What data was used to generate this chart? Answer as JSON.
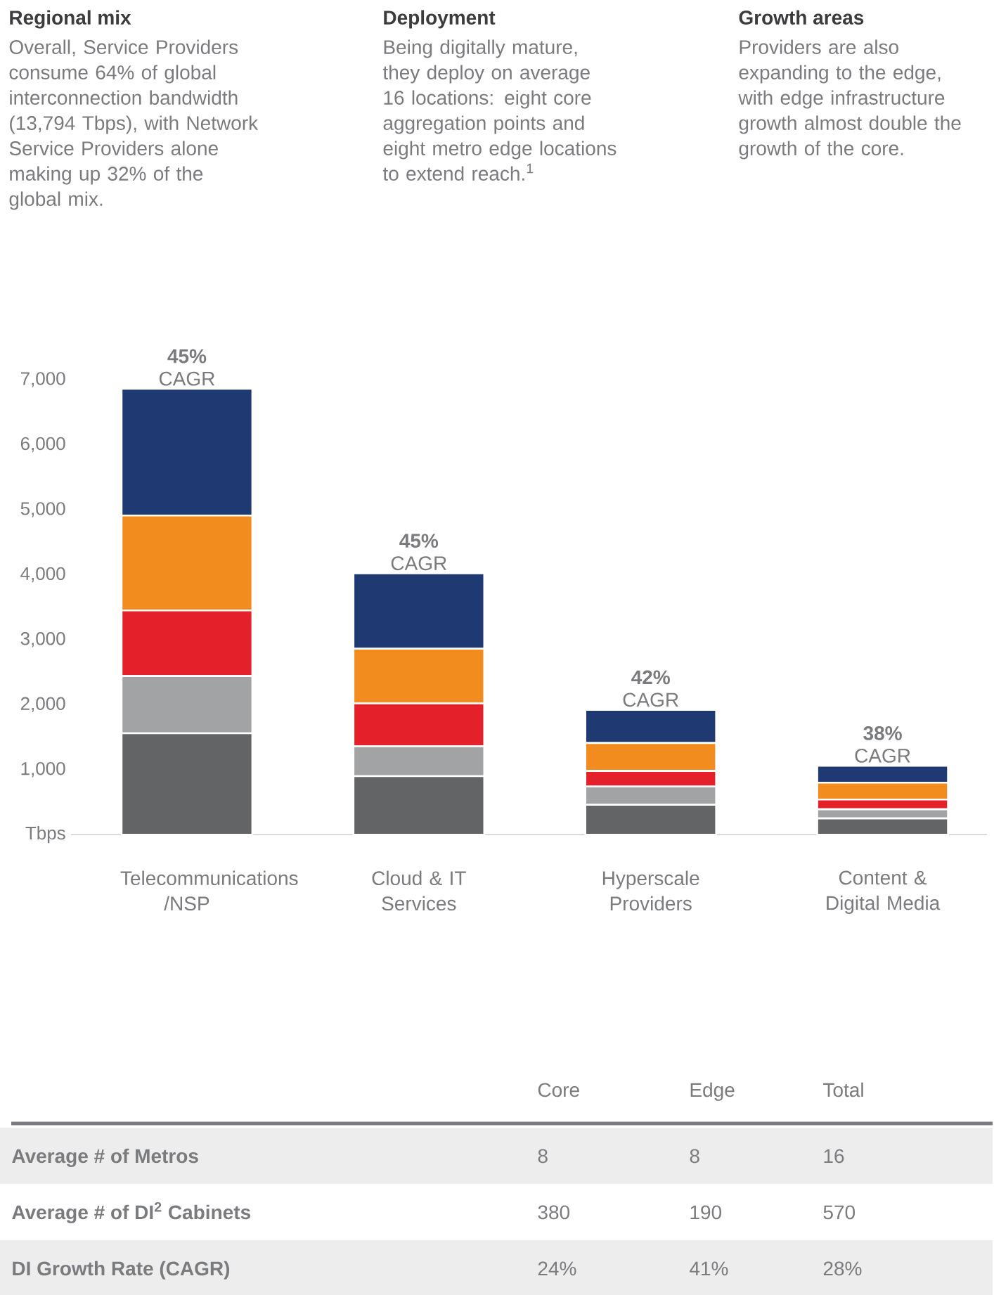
{
  "chart_data": {
    "type": "bar",
    "stacked": true,
    "categories": [
      "Telecommunications /NSP",
      "Cloud & IT Services",
      "Hyperscale Providers",
      "Content & Digital Media"
    ],
    "series": [
      {
        "color": "#636466",
        "values": [
          1560,
          900,
          460,
          250
        ]
      },
      {
        "color": "#a2a3a5",
        "values": [
          880,
          460,
          280,
          140
        ]
      },
      {
        "color": "#e4202a",
        "values": [
          1010,
          660,
          240,
          150
        ]
      },
      {
        "color": "#f28c1f",
        "values": [
          1460,
          840,
          430,
          260
        ]
      },
      {
        "color": "#1f3a72",
        "values": [
          1950,
          1160,
          510,
          260
        ]
      }
    ],
    "ylim": [
      0,
      7000
    ],
    "yticks": [
      {
        "value": 0,
        "label": "Tbps"
      },
      {
        "value": 1000,
        "label": "1,000"
      },
      {
        "value": 2000,
        "label": "2,000"
      },
      {
        "value": 3000,
        "label": "3,000"
      },
      {
        "value": 4000,
        "label": "4,000"
      },
      {
        "value": 5000,
        "label": "5,000"
      },
      {
        "value": 6000,
        "label": "6,000"
      },
      {
        "value": 7000,
        "label": "7,000"
      }
    ],
    "grid": false,
    "annotations": [
      "Regional mix",
      "Overall, Service Providers consume 64% of global interconnection bandwidth (13,794 Tbps), with Network Service Providers alone making up 32% of the global mix.",
      "Deployment",
      "Being digitally mature, they deploy on average 16 locations: eight core aggregation points and eight metro edge locations to extend reach.$^{1}$",
      "Growth areas",
      "Providers are also expanding to the edge, with edge infrastructure growth almost double the growth of the core.",
      {
        "text": "**45%** CAGR",
        "x": "Telecommunications /NSP",
        "y": 6860
      },
      {
        "text": "**45%** CAGR",
        "x": "Cloud & IT Services",
        "y": 4020
      },
      {
        "text": "**42%** CAGR",
        "x": "Hyperscale Providers",
        "y": 1920
      },
      {
        "text": "**38%** CAGR",
        "x": "Content & Digital Media",
        "y": 1060
      },
      "Core",
      "Edge",
      "Total",
      "Average # of Metros",
      "8",
      "8",
      "16",
      "Average # of DI$^{2}$ Cabinets",
      "380",
      "190",
      "570",
      "DI Growth Rate (CAGR)",
      "24%",
      "41%",
      "28%"
    ]
  }
}
